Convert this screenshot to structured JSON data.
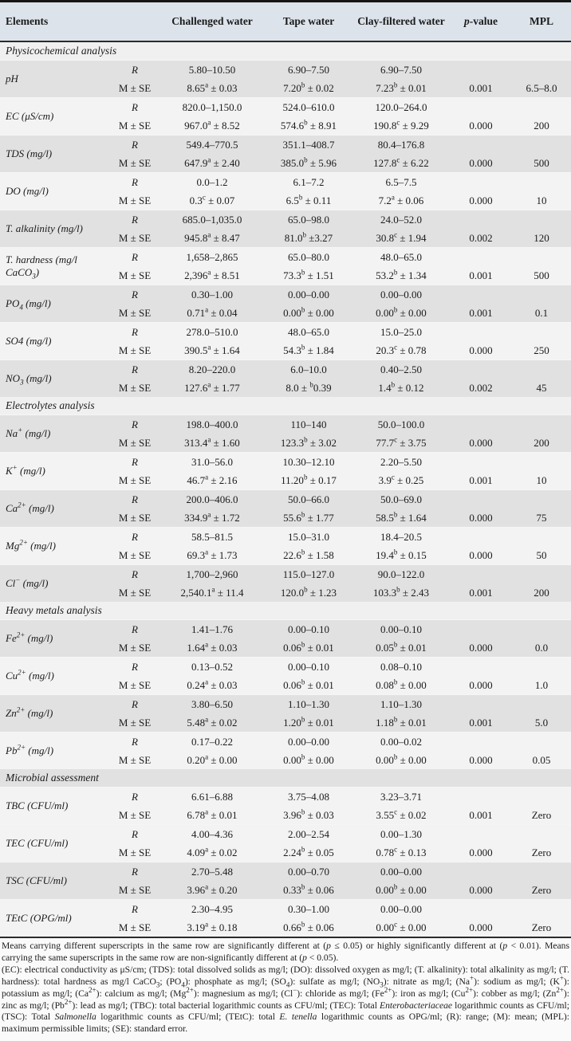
{
  "table": {
    "columns": [
      "Elements",
      "",
      "Challenged water",
      "Tape water",
      "Clay-filtered water",
      "*p*-value",
      "MPL"
    ],
    "row_labels": {
      "range": "R",
      "mean": "M ± SE"
    },
    "sections": [
      {
        "label": "Physicochemical analysis",
        "shaded": false,
        "rows": [
          {
            "element": "pH",
            "shaded": true,
            "r": [
              "5.80–10.50",
              "6.90–7.50",
              "6.90–7.50"
            ],
            "m": [
              "8.65^a ± 0.03",
              "7.20^b ± 0.02",
              "7.23^b ± 0.01"
            ],
            "p": "0.001",
            "mpl": "6.5–8.0"
          },
          {
            "element": "EC (μS/cm)",
            "shaded": false,
            "r": [
              "820.0–1,150.0",
              "524.0–610.0",
              "120.0–264.0"
            ],
            "m": [
              "967.0^a ± 8.52",
              "574.6^b ± 8.91",
              "190.8^c ± 9.29"
            ],
            "p": "0.000",
            "mpl": "200"
          },
          {
            "element": "TDS (mg/l)",
            "shaded": true,
            "r": [
              "549.4–770.5",
              "351.1–408.7",
              "80.4–176.8"
            ],
            "m": [
              "647.9^a ± 2.40",
              "385.0^b ± 5.96",
              "127.8^c ± 6.22"
            ],
            "p": "0.000",
            "mpl": "500"
          },
          {
            "element": "DO (mg/l)",
            "shaded": false,
            "r": [
              "0.0–1.2",
              "6.1–7.2",
              "6.5–7.5"
            ],
            "m": [
              "0.3^c ± 0.07",
              "6.5^b ± 0.11",
              "7.2^a ± 0.06"
            ],
            "p": "0.000",
            "mpl": "10"
          },
          {
            "element": "T. alkalinity (mg/l)",
            "shaded": true,
            "r": [
              "685.0–1,035.0",
              "65.0–98.0",
              "24.0–52.0"
            ],
            "m": [
              "945.8^a ± 8.47",
              "81.0^b ±3.27",
              "30.8^c ± 1.94"
            ],
            "p": "0.002",
            "mpl": "120"
          },
          {
            "element": "T. hardness (mg/l CaCO_3)",
            "shaded": false,
            "r": [
              "1,658–2,865",
              "65.0–80.0",
              "48.0–65.0"
            ],
            "m": [
              "2,396^a ± 8.51",
              "73.3^b ± 1.51",
              "53.2^b ± 1.34"
            ],
            "p": "0.001",
            "mpl": "500"
          },
          {
            "element": "PO_4 (mg/l)",
            "shaded": true,
            "r": [
              "0.30–1.00",
              "0.00–0.00",
              "0.00–0.00"
            ],
            "m": [
              "0.71^a ± 0.04",
              "0.00^b ± 0.00",
              "0.00^b ± 0.00"
            ],
            "p": "0.001",
            "mpl": "0.1"
          },
          {
            "element": "SO4 (mg/l)",
            "shaded": false,
            "r": [
              "278.0–510.0",
              "48.0–65.0",
              "15.0–25.0"
            ],
            "m": [
              "390.5^a ± 1.64",
              "54.3^b ± 1.84",
              "20.3^c ± 0.78"
            ],
            "p": "0.000",
            "mpl": "250"
          },
          {
            "element": "NO_3 (mg/l)",
            "shaded": true,
            "r": [
              "8.20–220.0",
              "6.0–10.0",
              "0.40–2.50"
            ],
            "m": [
              "127.6^a ± 1.77",
              "8.0 ± ^b0.39",
              "1.4^b ± 0.12"
            ],
            "p": "0.002",
            "mpl": "45"
          }
        ]
      },
      {
        "label": "Electrolytes analysis",
        "shaded": false,
        "rows": [
          {
            "element": "Na^+ (mg/l)",
            "shaded": true,
            "r": [
              "198.0–400.0",
              "110–140",
              "50.0–100.0"
            ],
            "m": [
              "313.4^a ± 1.60",
              "123.3^b ± 3.02",
              "77.7^c ± 3.75"
            ],
            "p": "0.000",
            "mpl": "200"
          },
          {
            "element": "K^+ (mg/l)",
            "shaded": false,
            "r": [
              "31.0–56.0",
              "10.30–12.10",
              "2.20–5.50"
            ],
            "m": [
              "46.7^a ± 2.16",
              "11.20^b ± 0.17",
              "3.9^c ± 0.25"
            ],
            "p": "0.001",
            "mpl": "10"
          },
          {
            "element": "Ca^{2+} (mg/l)",
            "shaded": true,
            "r": [
              "200.0–406.0",
              "50.0–66.0",
              "50.0–69.0"
            ],
            "m": [
              "334.9^a ± 1.72",
              "55.6^b ± 1.77",
              "58.5^b ± 1.64"
            ],
            "p": "0.000",
            "mpl": "75"
          },
          {
            "element": "Mg^{2+} (mg/l)",
            "shaded": false,
            "r": [
              "58.5–81.5",
              "15.0–31.0",
              "18.4–20.5"
            ],
            "m": [
              "69.3^a ± 1.73",
              "22.6^b ± 1.58",
              "19.4^b ± 0.15"
            ],
            "p": "0.000",
            "mpl": "50"
          },
          {
            "element": "Cl^− (mg/l)",
            "shaded": true,
            "r": [
              "1,700–2,960",
              "115.0–127.0",
              "90.0–122.0"
            ],
            "m": [
              "2,540.1^a ± 11.4",
              "120.0^b ± 1.23",
              "103.3^b ± 2.43"
            ],
            "p": "0.001",
            "mpl": "200"
          }
        ]
      },
      {
        "label": "Heavy metals analysis",
        "shaded": false,
        "rows": [
          {
            "element": "Fe^{2+} (mg/l)",
            "shaded": true,
            "r": [
              "1.41–1.76",
              "0.00–0.10",
              "0.00–0.10"
            ],
            "m": [
              "1.64^a ± 0.03",
              "0.06^b ± 0.01",
              "0.05^b ± 0.01"
            ],
            "p": "0.000",
            "mpl": "0.0"
          },
          {
            "element": "Cu^{2+} (mg/l)",
            "shaded": false,
            "r": [
              "0.13–0.52",
              "0.00–0.10",
              "0.08–0.10"
            ],
            "m": [
              "0.24^a ± 0.03",
              "0.06^b ± 0.01",
              "0.08^b ± 0.00"
            ],
            "p": "0.000",
            "mpl": "1.0"
          },
          {
            "element": "Zn^{2+} (mg/l)",
            "shaded": true,
            "r": [
              "3.80–6.50",
              "1.10–1.30",
              "1.10–1.30"
            ],
            "m": [
              "5.48^a ± 0.02",
              "1.20^b ± 0.01",
              "1.18^b ± 0.01"
            ],
            "p": "0.001",
            "mpl": "5.0"
          },
          {
            "element": "Pb^{2+} (mg/l)",
            "shaded": false,
            "r": [
              "0.17–0.22",
              "0.00–0.00",
              "0.00–0.02"
            ],
            "m": [
              "0.20^a ± 0.00",
              "0.00^b ± 0.00",
              "0.00^b ± 0.00"
            ],
            "p": "0.000",
            "mpl": "0.05"
          }
        ]
      },
      {
        "label": "Microbial assessment",
        "shaded": true,
        "rows": [
          {
            "element": "TBC (CFU/ml)",
            "shaded": false,
            "r": [
              "6.61–6.88",
              "3.75–4.08",
              "3.23–3.71"
            ],
            "m": [
              "6.78^a ± 0.01",
              "3.96^b ± 0.03",
              "3.55^c ± 0.02"
            ],
            "p": "0.001",
            "mpl": "Zero"
          },
          {
            "element": "TEC (CFU/ml)",
            "shaded": false,
            "r": [
              "4.00–4.36",
              "2.00–2.54",
              "0.00–1.30"
            ],
            "m": [
              "4.09^a ± 0.02",
              "2.24^b ± 0.05",
              "0.78^c ± 0.13"
            ],
            "p": "0.000",
            "mpl": "Zero"
          },
          {
            "element": "TSC (CFU/ml)",
            "shaded": true,
            "r": [
              "2.70–5.48",
              "0.00–0.70",
              "0.00–0.00"
            ],
            "m": [
              "3.96^a ± 0.20",
              "0.33^b ± 0.06",
              "0.00^b ± 0.00"
            ],
            "p": "0.000",
            "mpl": "Zero"
          },
          {
            "element": "TEtC (OPG/ml)",
            "shaded": false,
            "r": [
              "2.30–4.95",
              "0.30–1.00",
              "0.00–0.00"
            ],
            "m": [
              "3.19^a ± 0.18",
              "0.66^b ± 0.06",
              "0.00^c ± 0.00"
            ],
            "p": "0.000",
            "mpl": "Zero"
          }
        ]
      }
    ]
  },
  "footnotes": {
    "significance": "Means carrying different superscripts in the same row are significantly different at (*p* ≤ 0.05) or highly significantly different at (*p* < 0.01). Means carrying the same superscripts in the same row are non-significantly different at (*p* < 0.05).",
    "abbreviations": "(EC): electrical conductivity as μS/cm; (TDS): total dissolved solids as mg/l; (DO): dissolved oxygen as mg/l; (T. alkalinity): total alkalinity as mg/l; (T. hardness): total hardness as mg/l CaCO_3; (PO_4): phosphate as mg/l; (SO_4): sulfate as mg/l; (NO_3): nitrate as mg/l; (Na^+): sodium as mg/l; (K^+): potassium as mg/l; (Ca^{2+}): calcium as mg/l; (Mg^{2+}): magnesium as mg/l; (Cl^−): chloride as mg/l; (Fe^{2+}): iron as mg/l; (Cu^{2+}): cobber as mg/l; (Zn^{2+}): zinc as mg/l; (Pb^{2+}): lead as mg/l; (TBC): total bacterial logarithmic counts as CFU/ml; (TEC): Total *Enterobacteriaceae* logarithmic counts as CFU/ml; (TSC): Total *Salmonella* logarithmic counts as CFU/ml; (TEtC): total *E. tenella* logarithmic counts as OPG/ml; (R): range; (M): mean; (MPL): maximum permissible limits; (SE): standard error."
  },
  "colors": {
    "header_bg": "#dce3eb",
    "row_shaded": "#e2e1e2",
    "row_light": "#f4f3f4",
    "section_bg": "#f1f0f1",
    "border_dark": "#151515",
    "page_bg": "#fbfafb"
  }
}
